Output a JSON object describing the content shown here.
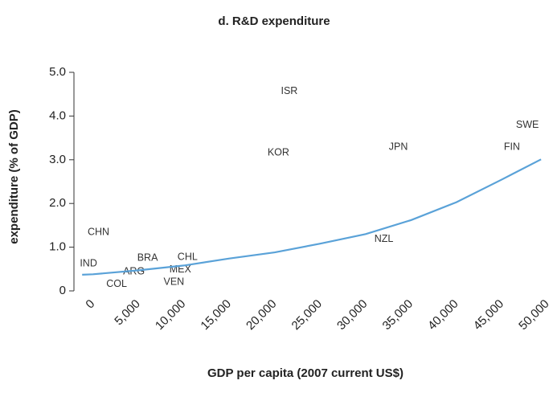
{
  "chart_data": {
    "type": "scatter",
    "title": "d. R&D expenditure",
    "xlabel": "GDP per capita (2007 current US$)",
    "ylabel": "expenditure (% of GDP)",
    "xlim": [
      -2100,
      50000
    ],
    "ylim": [
      0,
      5
    ],
    "xticks": [
      0,
      {
        "value": 5000,
        "label": "5,000"
      },
      {
        "value": 10000,
        "label": "10,000"
      },
      {
        "value": 15000,
        "label": "15,000"
      },
      {
        "value": 20000,
        "label": "20,000"
      },
      {
        "value": 25000,
        "label": "25,000"
      },
      {
        "value": 30000,
        "label": "30,000"
      },
      {
        "value": 35000,
        "label": "35,000"
      },
      {
        "value": 40000,
        "label": "40,000"
      },
      {
        "value": 45000,
        "label": "45,000"
      },
      {
        "value": 50000,
        "label": "50,000"
      }
    ],
    "yticks": [
      0,
      {
        "value": 1,
        "label": "1.0"
      },
      {
        "value": 2,
        "label": "2.0"
      },
      {
        "value": 3,
        "label": "3.0"
      },
      {
        "value": 4,
        "label": "4.0"
      },
      {
        "value": 5,
        "label": "5.0"
      }
    ],
    "points": {
      "labels": [
        "IND",
        "CHN",
        "BRA",
        "ARG",
        "COL",
        "CHL",
        "MEX",
        "VEN",
        "ISR",
        "KOR",
        "JPN",
        "NZL",
        "FIN",
        "SWE"
      ],
      "x": [
        -500,
        600,
        6000,
        4500,
        2600,
        10400,
        9600,
        8900,
        21600,
        20400,
        33600,
        32000,
        46100,
        47800
      ],
      "values": [
        0.62,
        1.34,
        0.75,
        0.44,
        0.15,
        0.77,
        0.48,
        0.2,
        4.56,
        3.16,
        3.29,
        1.18,
        3.29,
        3.79
      ]
    },
    "fit_line": {
      "color": "#5aa2d8",
      "x": [
        -1200,
        0,
        5000,
        10000,
        15000,
        20000,
        25000,
        30000,
        35000,
        40000,
        45000,
        49300
      ],
      "values": [
        0.37,
        0.38,
        0.47,
        0.58,
        0.74,
        0.88,
        1.08,
        1.3,
        1.62,
        2.03,
        2.55,
        3.01
      ]
    }
  }
}
